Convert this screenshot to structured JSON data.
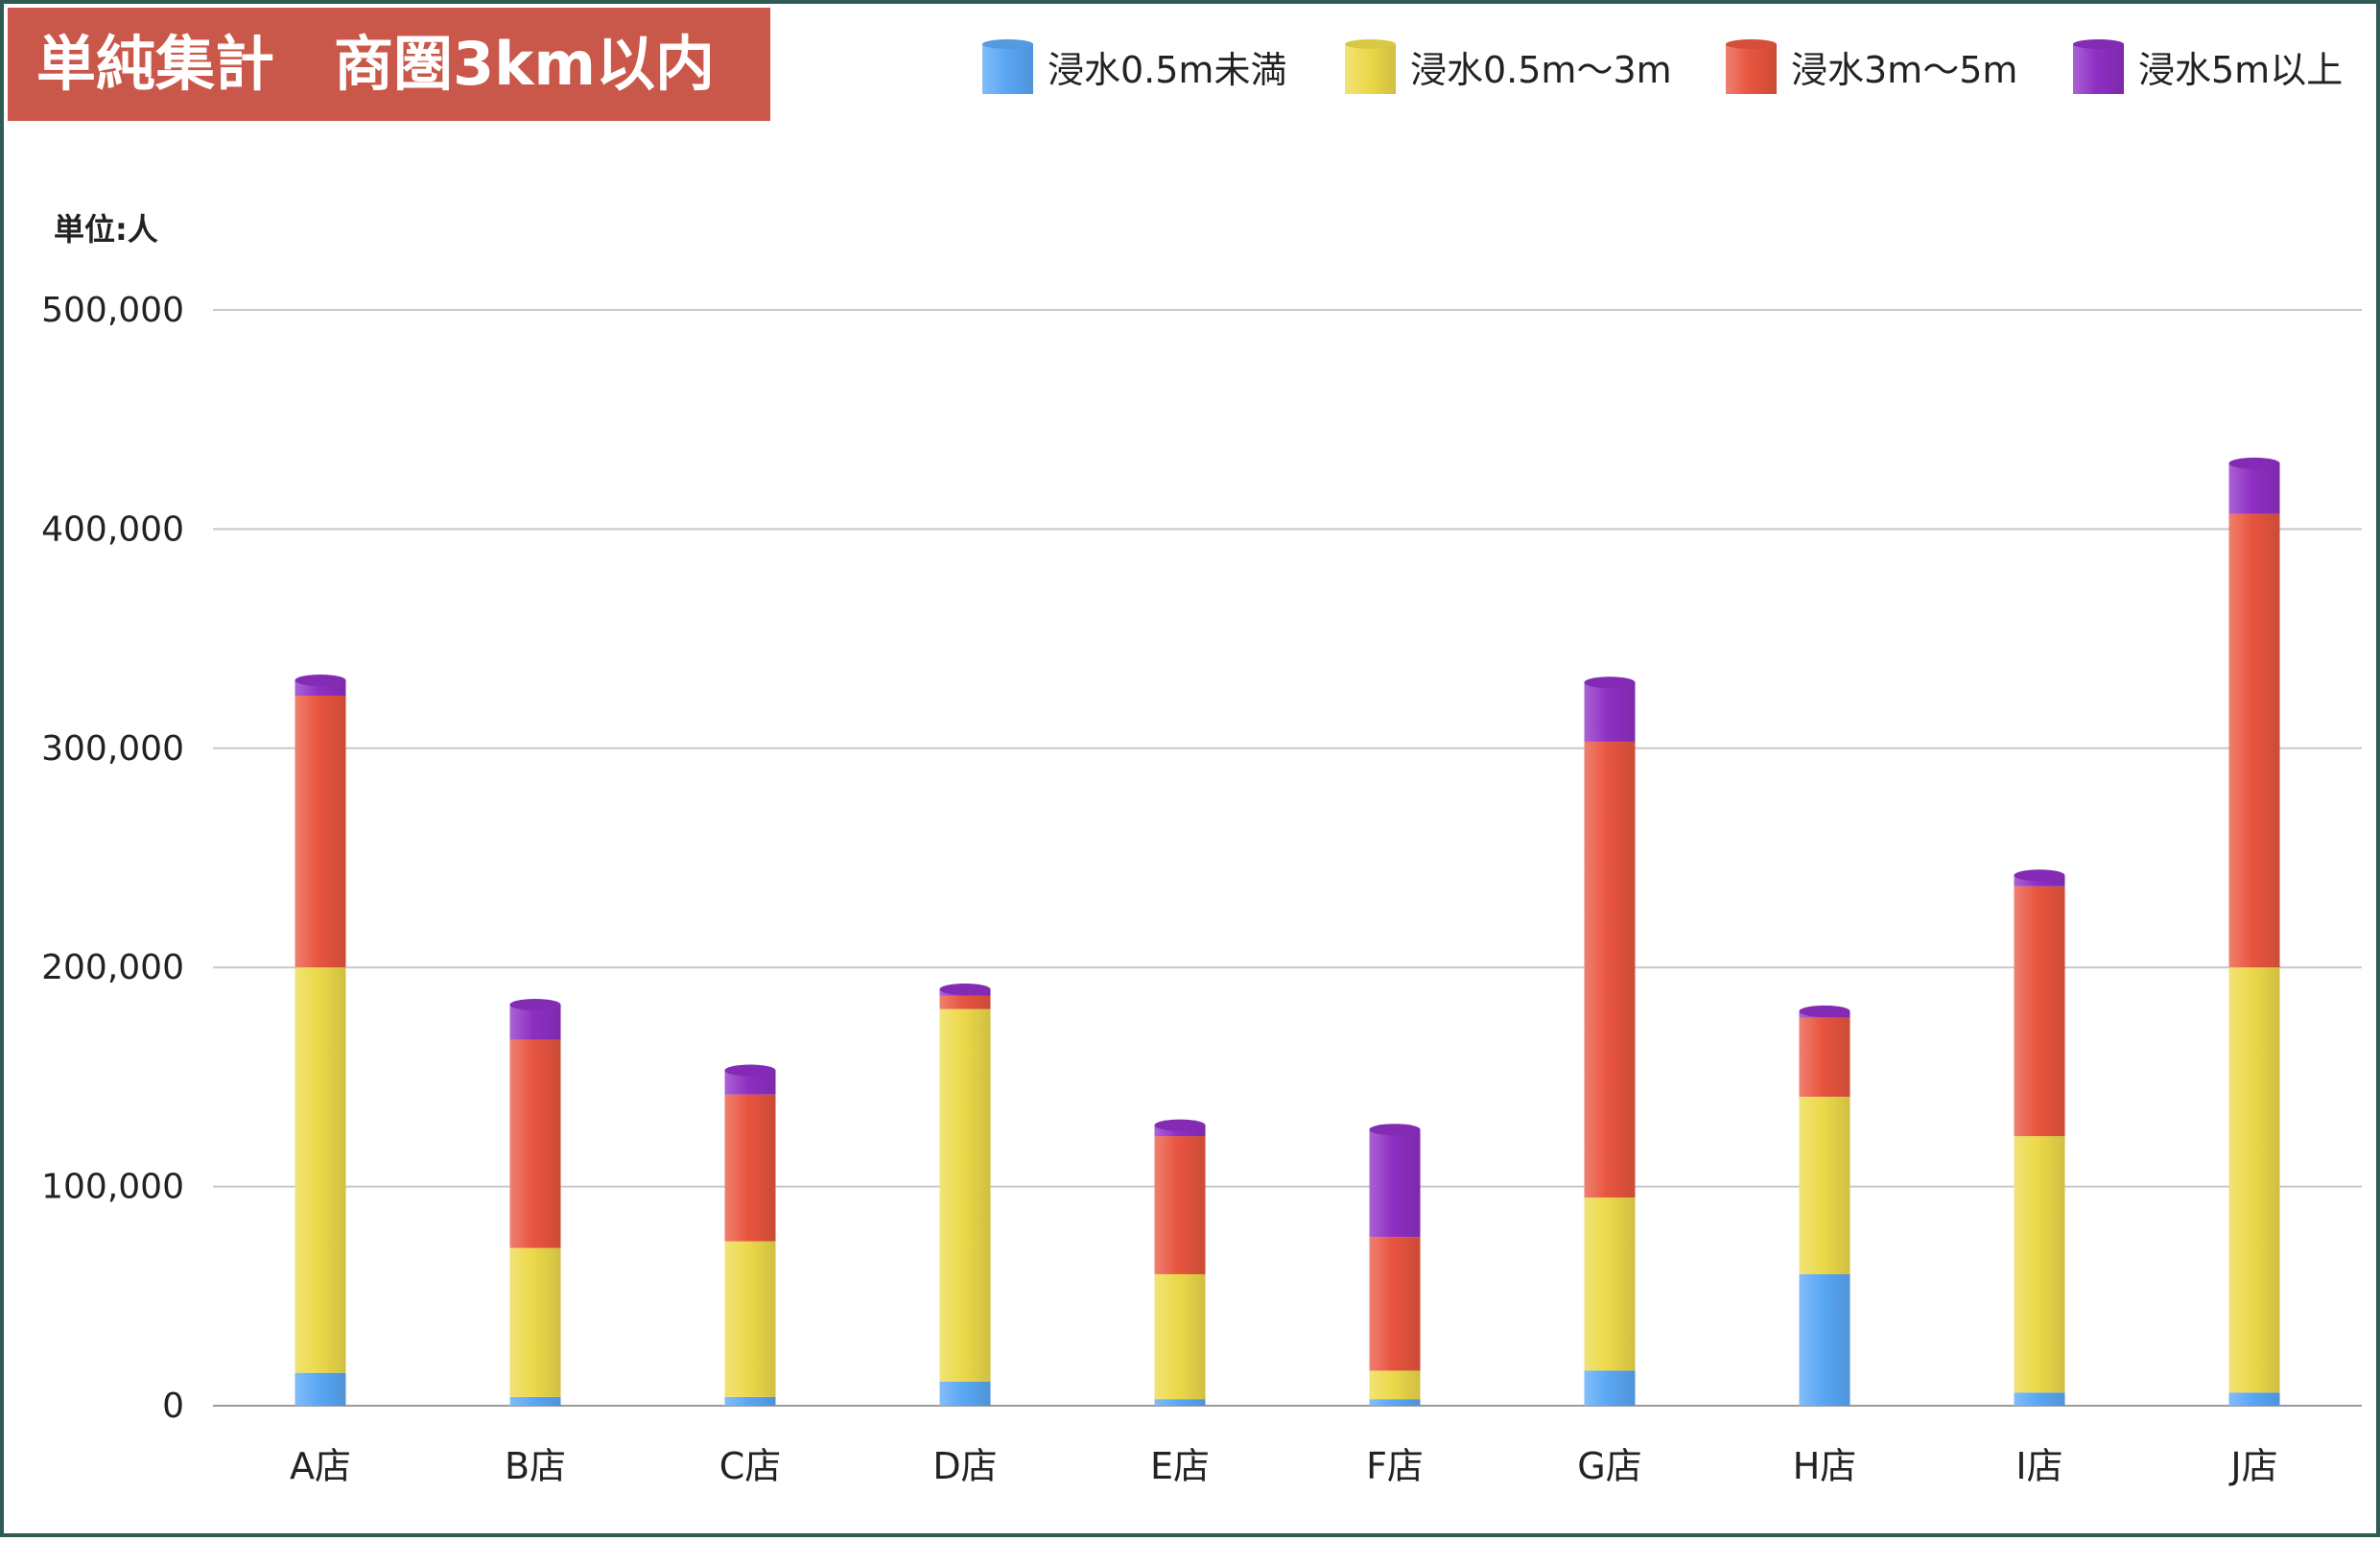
{
  "header": {
    "title": "単純集計　商圏3km以内"
  },
  "chart_data": {
    "type": "bar",
    "stacked": true,
    "title": "単純集計　商圏3km以内",
    "unit_label": "単位:人",
    "categories": [
      "A店",
      "B店",
      "C店",
      "D店",
      "E店",
      "F店",
      "G店",
      "H店",
      "I店",
      "J店"
    ],
    "ylim": [
      0,
      500000
    ],
    "yticks": [
      0,
      100000,
      200000,
      300000,
      400000,
      500000
    ],
    "ytick_labels": [
      "0",
      "100,000",
      "200,000",
      "300,000",
      "400,000",
      "500,000"
    ],
    "grid": true,
    "legend_position": "top-right",
    "series": [
      {
        "name": "浸水0.5m未満",
        "color": "#5aa7f5",
        "values": [
          15000,
          4000,
          4000,
          11000,
          3000,
          3000,
          16000,
          60000,
          6000,
          6000
        ]
      },
      {
        "name": "浸水0.5m〜3m",
        "color": "#ecd94a",
        "values": [
          185000,
          68000,
          71000,
          170000,
          57000,
          13000,
          79000,
          81000,
          117000,
          194000
        ]
      },
      {
        "name": "浸水3m〜5m",
        "color": "#e8553f",
        "values": [
          124000,
          95000,
          67000,
          6000,
          63000,
          61000,
          208000,
          36000,
          114000,
          207000
        ]
      },
      {
        "name": "浸水5m以上",
        "color": "#8e2fc4",
        "values": [
          7000,
          16000,
          11000,
          3000,
          5000,
          49000,
          27000,
          3000,
          5000,
          23000
        ]
      }
    ]
  }
}
